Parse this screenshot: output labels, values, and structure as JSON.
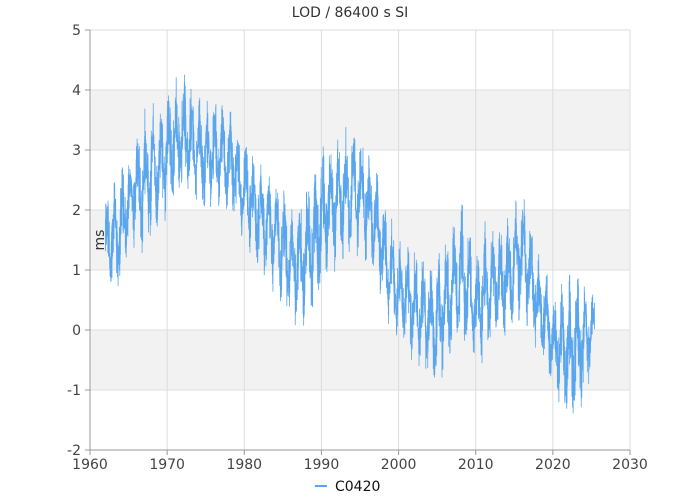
{
  "chart_data": {
    "type": "line",
    "title": "LOD / 86400 s SI",
    "xlabel": "",
    "ylabel": "ms",
    "xlim": [
      1960,
      2030
    ],
    "ylim": [
      -2,
      5
    ],
    "x_ticks": [
      "1960",
      "1970",
      "1980",
      "1990",
      "2000",
      "2010",
      "2020",
      "2030"
    ],
    "y_ticks": [
      "-2",
      "-1",
      "0",
      "1",
      "2",
      "3",
      "4",
      "5"
    ],
    "grid": true,
    "alternating_bands": true,
    "legend": "bottom-center",
    "series_color": "#5aa6ee",
    "series": [
      {
        "name": "C0420",
        "x_start": 1962.0,
        "x_end": 2025.4,
        "envelope": [
          {
            "x": 1962.0,
            "low": 0.6,
            "high": 2.2
          },
          {
            "x": 1963.0,
            "low": 0.5,
            "high": 2.6
          },
          {
            "x": 1964.0,
            "low": 0.6,
            "high": 2.8
          },
          {
            "x": 1965.0,
            "low": 1.3,
            "high": 3.0
          },
          {
            "x": 1966.0,
            "low": 1.4,
            "high": 3.4
          },
          {
            "x": 1967.0,
            "low": 1.2,
            "high": 3.7
          },
          {
            "x": 1968.0,
            "low": 1.4,
            "high": 3.8
          },
          {
            "x": 1969.0,
            "low": 1.6,
            "high": 3.8
          },
          {
            "x": 1970.0,
            "low": 1.9,
            "high": 4.0
          },
          {
            "x": 1971.0,
            "low": 2.0,
            "high": 4.2
          },
          {
            "x": 1972.0,
            "low": 2.1,
            "high": 4.3
          },
          {
            "x": 1973.0,
            "low": 2.0,
            "high": 4.2
          },
          {
            "x": 1974.0,
            "low": 2.1,
            "high": 3.9
          },
          {
            "x": 1975.0,
            "low": 1.9,
            "high": 3.8
          },
          {
            "x": 1976.0,
            "low": 2.0,
            "high": 3.9
          },
          {
            "x": 1977.0,
            "low": 2.1,
            "high": 3.8
          },
          {
            "x": 1978.0,
            "low": 1.9,
            "high": 3.7
          },
          {
            "x": 1979.0,
            "low": 1.7,
            "high": 3.5
          },
          {
            "x": 1980.0,
            "low": 1.5,
            "high": 3.3
          },
          {
            "x": 1981.0,
            "low": 1.2,
            "high": 3.1
          },
          {
            "x": 1982.0,
            "low": 0.9,
            "high": 2.9
          },
          {
            "x": 1983.0,
            "low": 0.7,
            "high": 2.8
          },
          {
            "x": 1984.0,
            "low": 0.6,
            "high": 2.7
          },
          {
            "x": 1985.0,
            "low": 0.3,
            "high": 2.4
          },
          {
            "x": 1986.0,
            "low": 0.2,
            "high": 2.2
          },
          {
            "x": 1987.0,
            "low": 0.0,
            "high": 2.2
          },
          {
            "x": 1988.0,
            "low": 0.1,
            "high": 2.5
          },
          {
            "x": 1989.0,
            "low": 0.1,
            "high": 2.9
          },
          {
            "x": 1990.0,
            "low": 0.6,
            "high": 3.1
          },
          {
            "x": 1991.0,
            "low": 0.9,
            "high": 3.2
          },
          {
            "x": 1992.0,
            "low": 1.0,
            "high": 3.3
          },
          {
            "x": 1993.0,
            "low": 1.1,
            "high": 3.4
          },
          {
            "x": 1994.0,
            "low": 1.1,
            "high": 3.5
          },
          {
            "x": 1995.0,
            "low": 1.3,
            "high": 3.4
          },
          {
            "x": 1996.0,
            "low": 1.0,
            "high": 3.1
          },
          {
            "x": 1997.0,
            "low": 0.9,
            "high": 2.7
          },
          {
            "x": 1998.0,
            "low": 0.4,
            "high": 2.3
          },
          {
            "x": 1999.0,
            "low": -0.1,
            "high": 1.9
          },
          {
            "x": 2000.0,
            "low": -0.2,
            "high": 1.5
          },
          {
            "x": 2001.0,
            "low": -0.4,
            "high": 1.4
          },
          {
            "x": 2002.0,
            "low": -0.6,
            "high": 1.4
          },
          {
            "x": 2003.0,
            "low": -0.7,
            "high": 1.3
          },
          {
            "x": 2004.0,
            "low": -0.9,
            "high": 1.2
          },
          {
            "x": 2005.0,
            "low": -1.0,
            "high": 1.2
          },
          {
            "x": 2006.0,
            "low": -0.7,
            "high": 1.5
          },
          {
            "x": 2007.0,
            "low": -0.5,
            "high": 1.9
          },
          {
            "x": 2008.0,
            "low": -0.3,
            "high": 2.2
          },
          {
            "x": 2009.0,
            "low": -0.4,
            "high": 1.8
          },
          {
            "x": 2010.0,
            "low": -0.7,
            "high": 1.4
          },
          {
            "x": 2011.0,
            "low": -0.6,
            "high": 1.8
          },
          {
            "x": 2012.0,
            "low": -0.3,
            "high": 1.9
          },
          {
            "x": 2013.0,
            "low": -0.3,
            "high": 1.9
          },
          {
            "x": 2014.0,
            "low": -0.2,
            "high": 1.9
          },
          {
            "x": 2015.0,
            "low": 0.1,
            "high": 2.1
          },
          {
            "x": 2016.0,
            "low": 0.2,
            "high": 2.4
          },
          {
            "x": 2017.0,
            "low": 0.0,
            "high": 2.0
          },
          {
            "x": 2018.0,
            "low": -0.4,
            "high": 1.3
          },
          {
            "x": 2019.0,
            "low": -0.7,
            "high": 1.1
          },
          {
            "x": 2020.0,
            "low": -1.0,
            "high": 0.6
          },
          {
            "x": 2021.0,
            "low": -1.4,
            "high": 0.8
          },
          {
            "x": 2022.0,
            "low": -1.6,
            "high": 0.9
          },
          {
            "x": 2023.0,
            "low": -1.5,
            "high": 1.0
          },
          {
            "x": 2024.0,
            "low": -1.4,
            "high": 1.1
          },
          {
            "x": 2025.0,
            "low": -0.7,
            "high": 0.7
          }
        ]
      }
    ]
  }
}
